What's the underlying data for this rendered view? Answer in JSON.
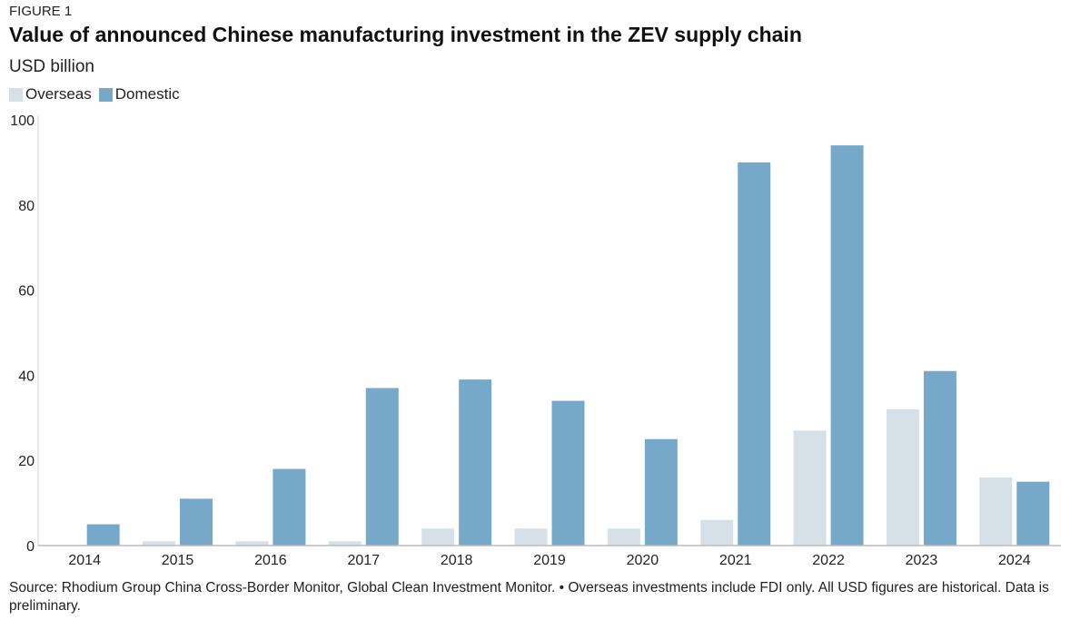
{
  "figure_label": "FIGURE 1",
  "chart_data": {
    "type": "bar",
    "title": "Value of announced Chinese manufacturing investment in the ZEV supply chain",
    "ylabel": "USD billion",
    "xlabel": "",
    "categories": [
      "2014",
      "2015",
      "2016",
      "2017",
      "2018",
      "2019",
      "2020",
      "2021",
      "2022",
      "2023",
      "2024"
    ],
    "series": [
      {
        "name": "Overseas",
        "color": "#d5e0e7",
        "values": [
          0,
          1,
          1,
          1,
          4,
          4,
          4,
          6,
          27,
          32,
          16
        ]
      },
      {
        "name": "Domestic",
        "color": "#76a9c9",
        "values": [
          5,
          11,
          18,
          37,
          39,
          34,
          25,
          90,
          94,
          41,
          15
        ]
      }
    ],
    "ylim": [
      0,
      100
    ],
    "yticks": [
      0,
      20,
      40,
      60,
      80,
      100
    ],
    "grid": false,
    "legend_placement": "top-left"
  },
  "source": "Source: Rhodium Group China Cross-Border Monitor, Global Clean Investment Monitor. • Overseas investments include FDI only. All USD figures are historical. Data is preliminary."
}
